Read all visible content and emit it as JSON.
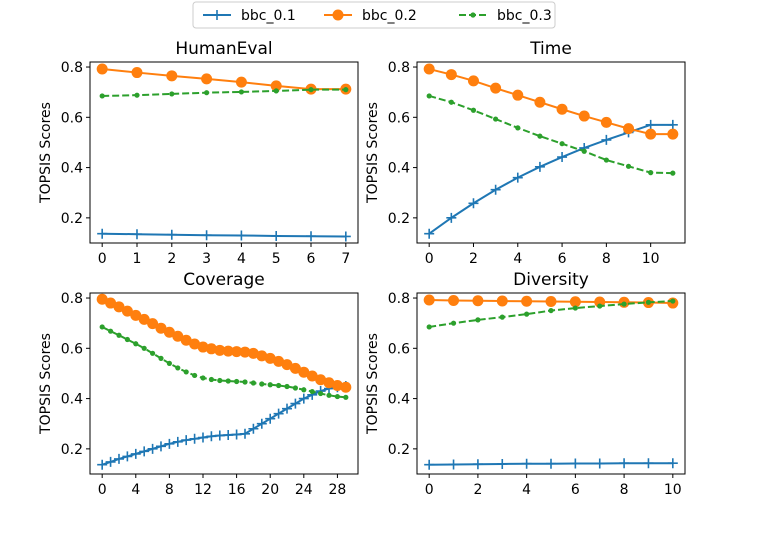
{
  "colors": {
    "bbc_0.1": "#1f77b4",
    "bbc_0.2": "#ff7f0e",
    "bbc_0.3": "#2ca02c"
  },
  "legend": [
    {
      "name": "bbc_0.1",
      "marker": "plus",
      "dash": "solid"
    },
    {
      "name": "bbc_0.2",
      "marker": "circle",
      "dash": "solid"
    },
    {
      "name": "bbc_0.3",
      "marker": "dot",
      "dash": "dashed"
    }
  ],
  "chart_data": [
    {
      "type": "line",
      "title": "HumanEval",
      "ylabel": "TOPSIS Scores",
      "x": [
        0,
        1,
        2,
        3,
        4,
        5,
        6,
        7
      ],
      "xlim": [
        -0.35,
        7.35
      ],
      "ylim": [
        0.1,
        0.82
      ],
      "xticks": [
        0,
        1,
        2,
        3,
        4,
        5,
        6,
        7
      ],
      "yticks": [
        0.2,
        0.4,
        0.6,
        0.8
      ],
      "series": [
        {
          "name": "bbc_0.1",
          "values": [
            0.137,
            0.135,
            0.133,
            0.131,
            0.13,
            0.128,
            0.127,
            0.126
          ]
        },
        {
          "name": "bbc_0.2",
          "values": [
            0.792,
            0.778,
            0.765,
            0.753,
            0.74,
            0.725,
            0.712,
            0.712
          ]
        },
        {
          "name": "bbc_0.3",
          "values": [
            0.685,
            0.688,
            0.693,
            0.698,
            0.701,
            0.705,
            0.71,
            0.71
          ]
        }
      ]
    },
    {
      "type": "line",
      "title": "Time",
      "ylabel": "TOPSIS Scores",
      "x": [
        0,
        1,
        2,
        3,
        4,
        5,
        6,
        7,
        8,
        9,
        10,
        11
      ],
      "xlim": [
        -0.55,
        11.55
      ],
      "ylim": [
        0.1,
        0.82
      ],
      "xticks": [
        0,
        2,
        4,
        6,
        8,
        10
      ],
      "yticks": [
        0.2,
        0.4,
        0.6,
        0.8
      ],
      "series": [
        {
          "name": "bbc_0.1",
          "values": [
            0.137,
            0.2,
            0.258,
            0.312,
            0.36,
            0.403,
            0.442,
            0.478,
            0.51,
            0.54,
            0.57,
            0.57
          ]
        },
        {
          "name": "bbc_0.2",
          "values": [
            0.792,
            0.77,
            0.745,
            0.716,
            0.688,
            0.66,
            0.632,
            0.605,
            0.58,
            0.555,
            0.533,
            0.533
          ]
        },
        {
          "name": "bbc_0.3",
          "values": [
            0.685,
            0.66,
            0.628,
            0.593,
            0.558,
            0.525,
            0.495,
            0.465,
            0.43,
            0.405,
            0.38,
            0.378
          ]
        }
      ]
    },
    {
      "type": "line",
      "title": "Coverage",
      "ylabel": "TOPSIS Scores",
      "x": [
        0,
        1,
        2,
        3,
        4,
        5,
        6,
        7,
        8,
        9,
        10,
        11,
        12,
        13,
        14,
        15,
        16,
        17,
        18,
        19,
        20,
        21,
        22,
        23,
        24,
        25,
        26,
        27,
        28,
        29
      ],
      "xlim": [
        -1.45,
        30.45
      ],
      "ylim": [
        0.1,
        0.82
      ],
      "xticks": [
        0,
        4,
        8,
        12,
        16,
        20,
        24,
        28
      ],
      "yticks": [
        0.2,
        0.4,
        0.6,
        0.8
      ],
      "series": [
        {
          "name": "bbc_0.1",
          "values": [
            0.137,
            0.148,
            0.16,
            0.17,
            0.18,
            0.19,
            0.2,
            0.21,
            0.22,
            0.228,
            0.235,
            0.24,
            0.245,
            0.25,
            0.253,
            0.255,
            0.257,
            0.26,
            0.28,
            0.3,
            0.32,
            0.34,
            0.36,
            0.38,
            0.4,
            0.415,
            0.43,
            0.44,
            0.445,
            0.45
          ]
        },
        {
          "name": "bbc_0.2",
          "values": [
            0.795,
            0.78,
            0.765,
            0.748,
            0.731,
            0.715,
            0.698,
            0.68,
            0.664,
            0.648,
            0.632,
            0.617,
            0.605,
            0.598,
            0.592,
            0.589,
            0.587,
            0.585,
            0.58,
            0.57,
            0.56,
            0.548,
            0.535,
            0.52,
            0.505,
            0.49,
            0.475,
            0.463,
            0.452,
            0.445
          ]
        },
        {
          "name": "bbc_0.3",
          "values": [
            0.685,
            0.668,
            0.652,
            0.635,
            0.618,
            0.6,
            0.58,
            0.56,
            0.54,
            0.522,
            0.506,
            0.492,
            0.482,
            0.476,
            0.472,
            0.47,
            0.468,
            0.466,
            0.462,
            0.458,
            0.455,
            0.452,
            0.448,
            0.442,
            0.435,
            0.428,
            0.42,
            0.413,
            0.408,
            0.405
          ]
        }
      ]
    },
    {
      "type": "line",
      "title": "Diversity",
      "ylabel": "TOPSIS Scores",
      "x": [
        0,
        1,
        2,
        3,
        4,
        5,
        6,
        7,
        8,
        9,
        10
      ],
      "xlim": [
        -0.5,
        10.5
      ],
      "ylim": [
        0.1,
        0.82
      ],
      "xticks": [
        0,
        2,
        4,
        6,
        8,
        10
      ],
      "yticks": [
        0.2,
        0.4,
        0.6,
        0.8
      ],
      "series": [
        {
          "name": "bbc_0.1",
          "values": [
            0.137,
            0.138,
            0.139,
            0.14,
            0.141,
            0.141,
            0.142,
            0.142,
            0.143,
            0.143,
            0.143
          ]
        },
        {
          "name": "bbc_0.2",
          "values": [
            0.792,
            0.79,
            0.789,
            0.788,
            0.787,
            0.786,
            0.785,
            0.784,
            0.783,
            0.782,
            0.78
          ]
        },
        {
          "name": "bbc_0.3",
          "values": [
            0.685,
            0.7,
            0.713,
            0.724,
            0.736,
            0.75,
            0.76,
            0.768,
            0.776,
            0.783,
            0.788
          ]
        }
      ]
    }
  ]
}
